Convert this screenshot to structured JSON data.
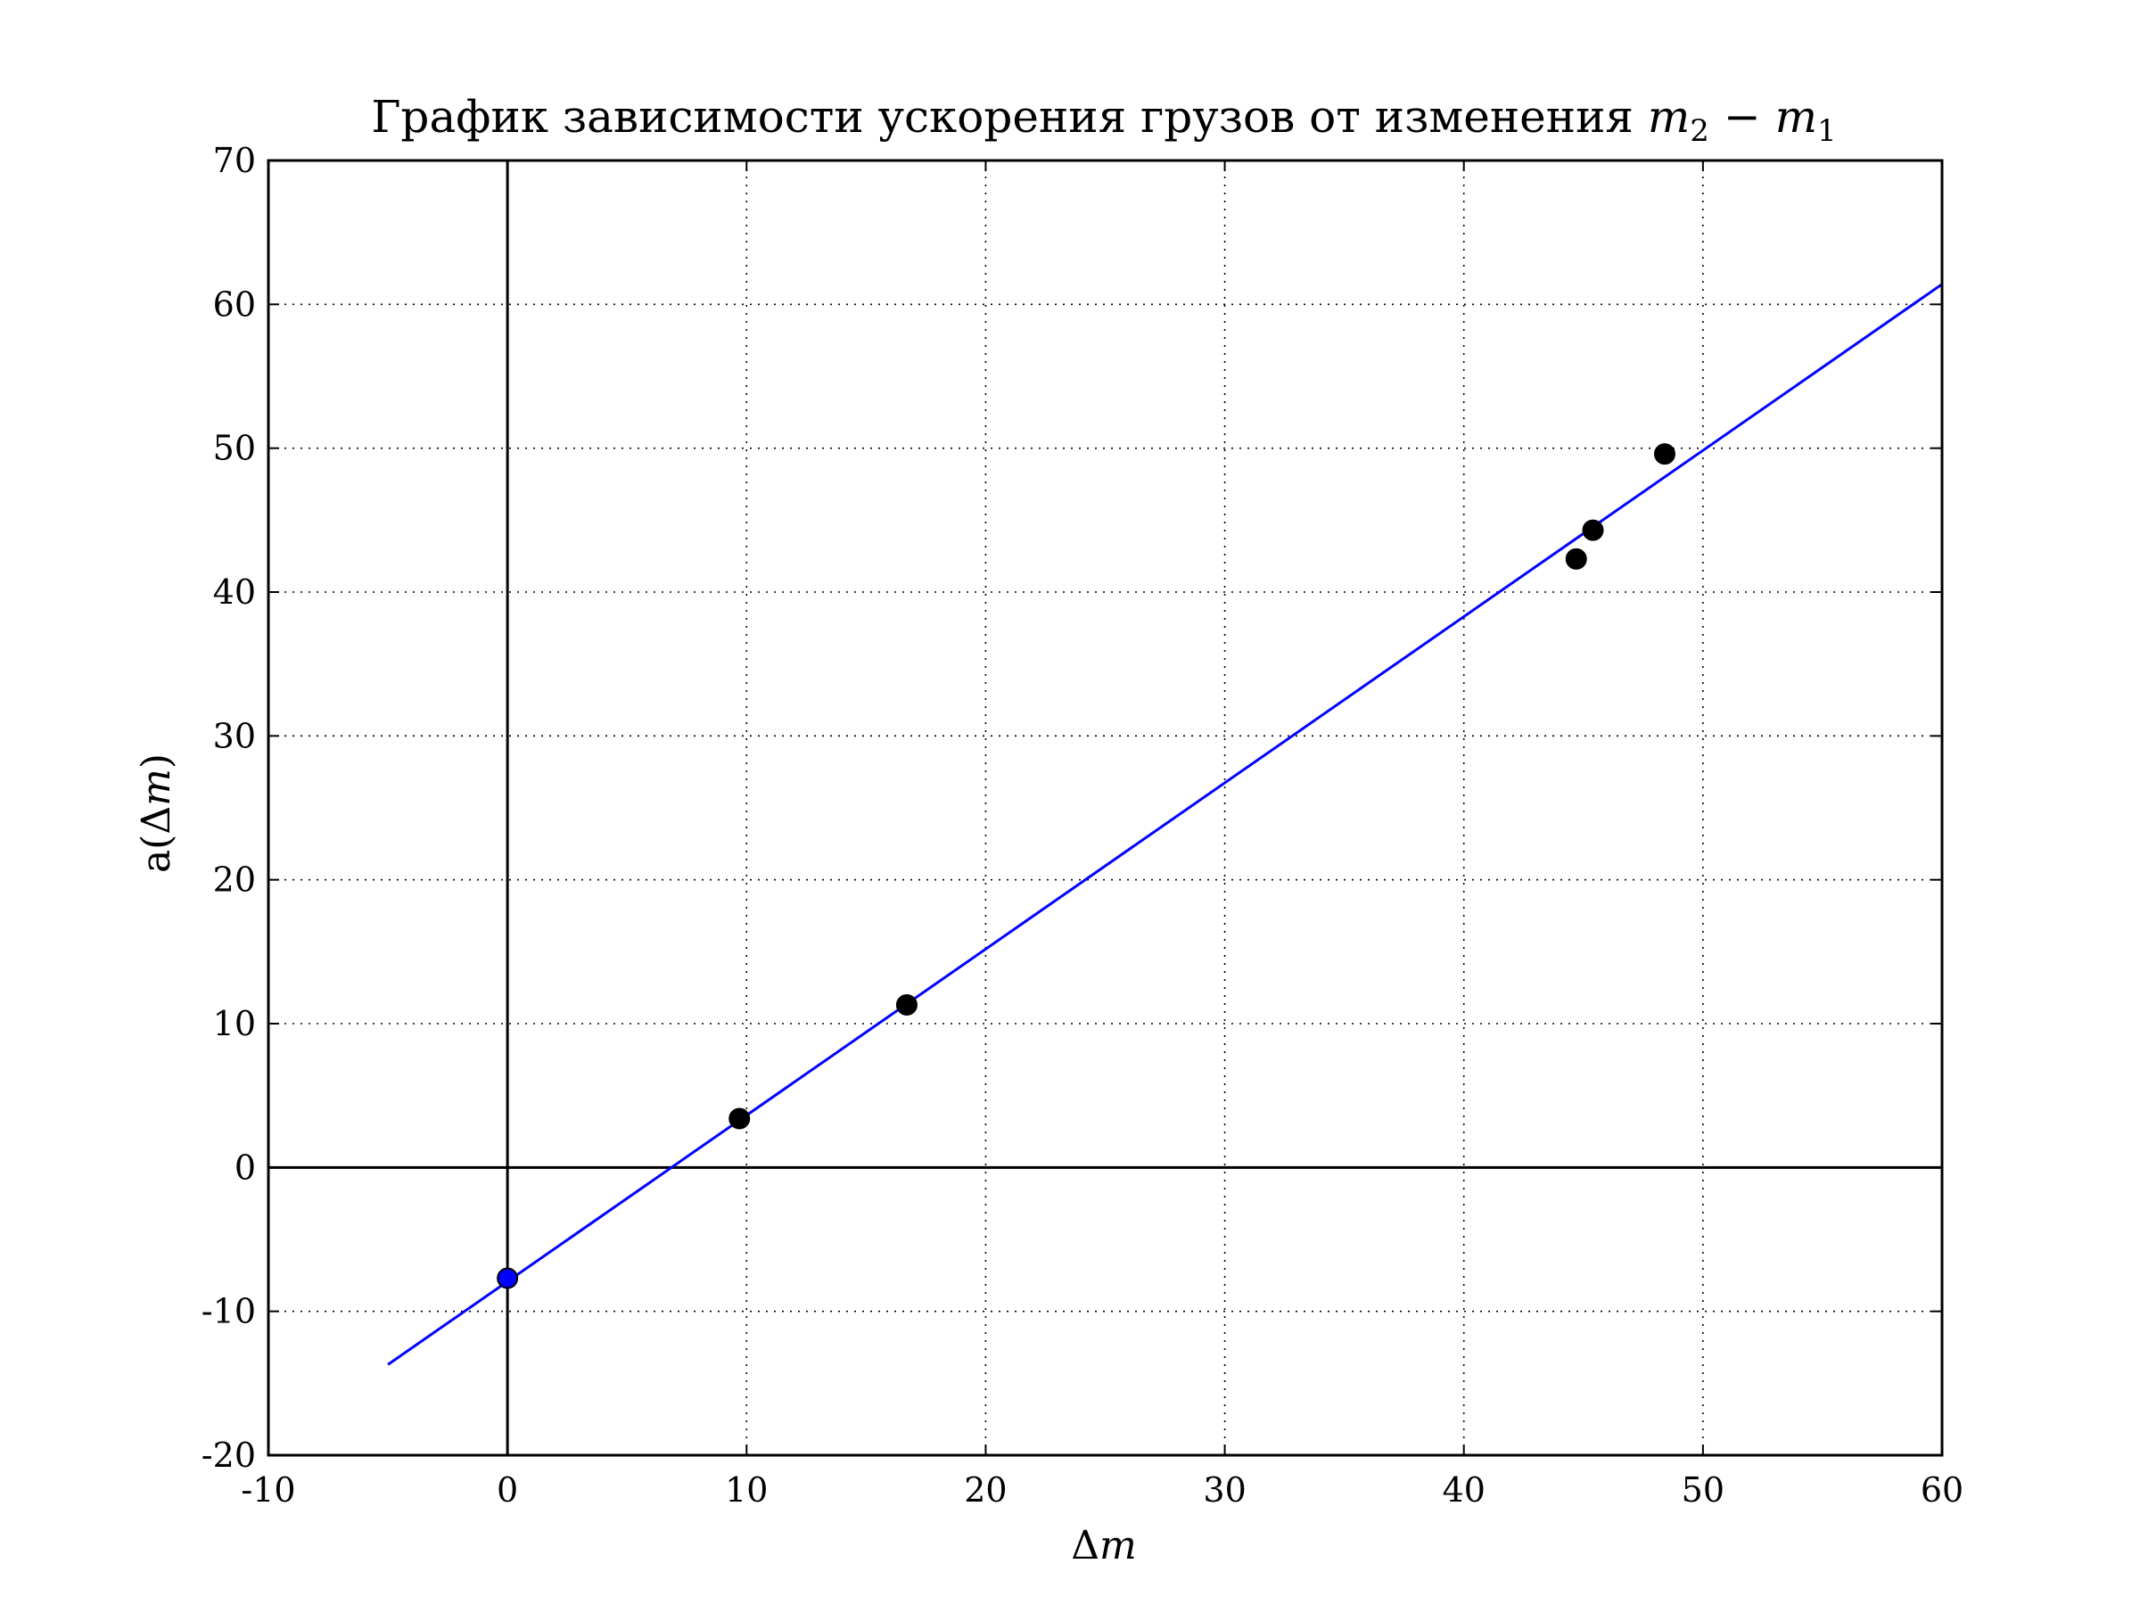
{
  "chart_data": {
    "type": "scatter",
    "title": "График зависимости ускорения грузов от изменения",
    "title_math": {
      "a": "m",
      "a_sub": "2",
      "op": " − ",
      "b": "m",
      "b_sub": "1"
    },
    "xlabel": {
      "prefix": "Δ",
      "var": "m"
    },
    "ylabel": {
      "pre": "a(Δ",
      "var": "m",
      "post": ")"
    },
    "xlim": [
      -10,
      60
    ],
    "ylim": [
      -20,
      70
    ],
    "xticks": [
      -10,
      0,
      10,
      20,
      30,
      40,
      50,
      60
    ],
    "yticks": [
      -20,
      -10,
      0,
      10,
      20,
      30,
      40,
      50,
      60,
      70
    ],
    "xtick_labels": [
      "-10",
      "0",
      "10",
      "20",
      "30",
      "40",
      "50",
      "60"
    ],
    "ytick_labels": [
      "-20",
      "-10",
      "0",
      "10",
      "20",
      "30",
      "40",
      "50",
      "60",
      "70"
    ],
    "grid": true,
    "reference_lines": {
      "x": 0,
      "y": 0
    },
    "series": [
      {
        "type": "scatter",
        "color": "#000000",
        "x": [
          9.7,
          16.7,
          44.7,
          45.4,
          48.4
        ],
        "y": [
          3.4,
          11.3,
          42.3,
          44.3,
          49.6
        ]
      },
      {
        "type": "scatter",
        "color": "#0000ff",
        "x": [
          0
        ],
        "y": [
          -7.7
        ]
      },
      {
        "type": "line",
        "color": "#0000ff",
        "x": [
          -5,
          60
        ],
        "y": [
          -13.7,
          61.4
        ]
      }
    ]
  }
}
